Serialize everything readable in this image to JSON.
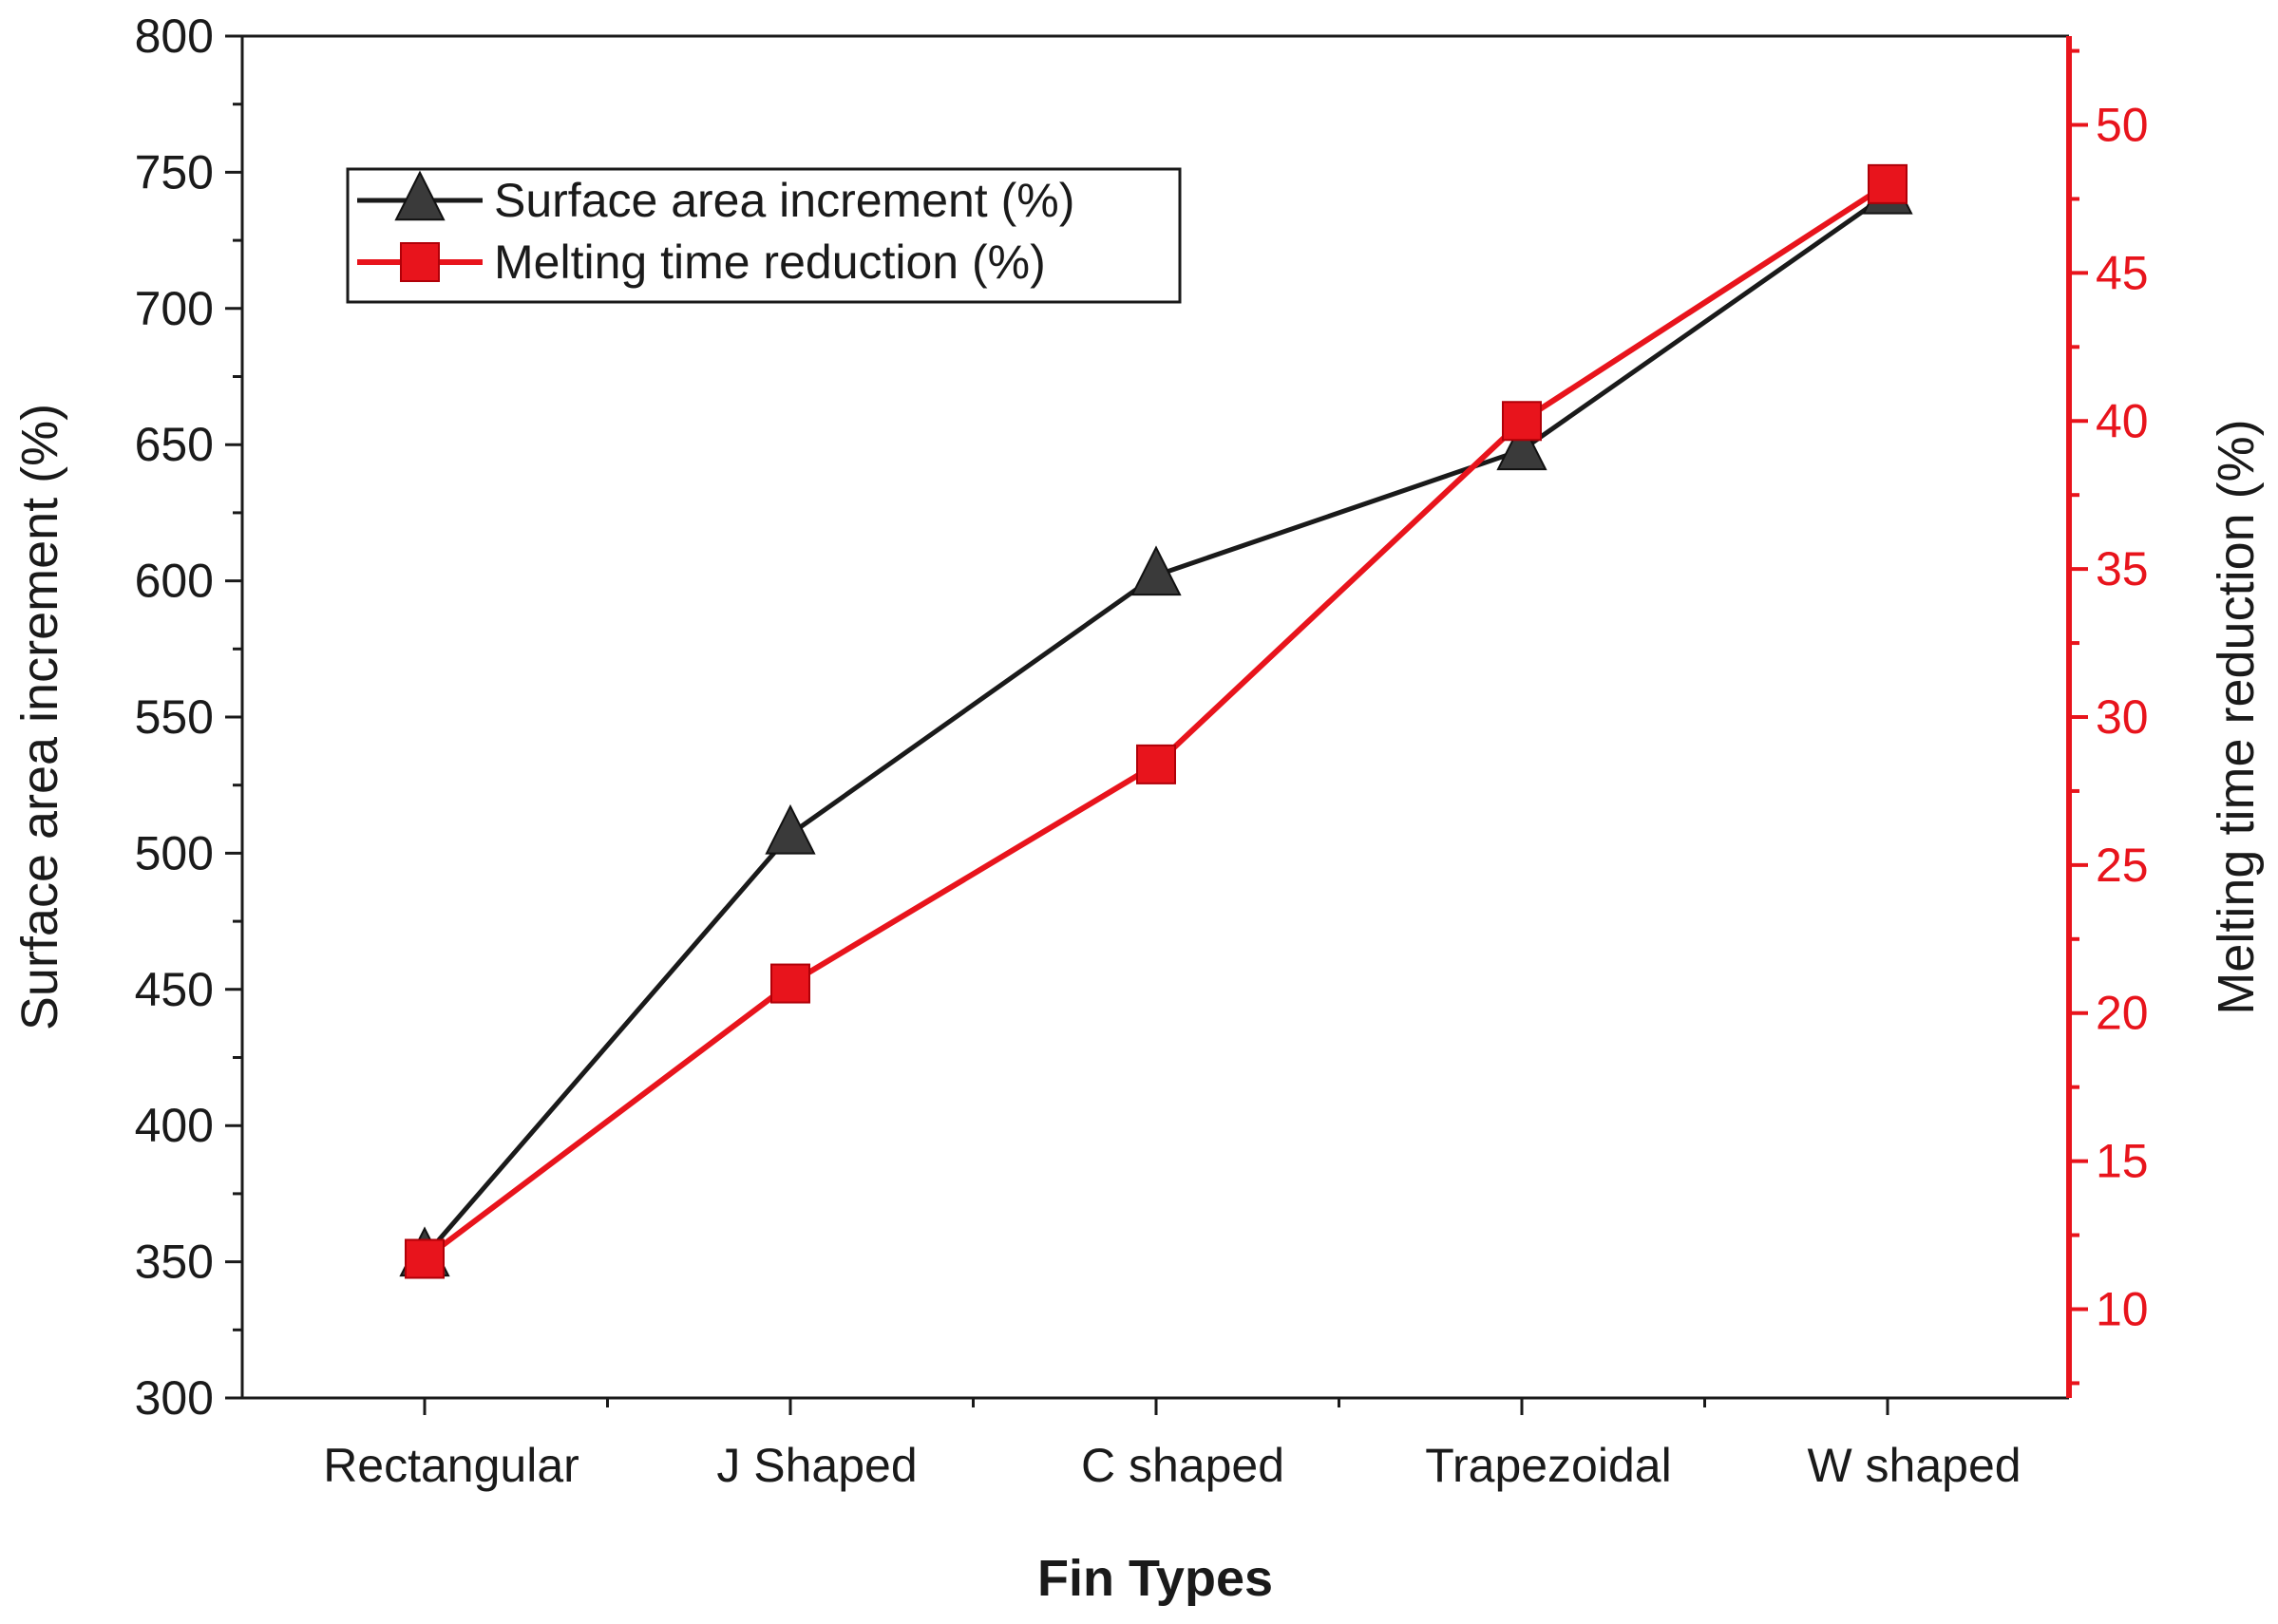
{
  "chart_data": {
    "type": "line",
    "categories": [
      "Rectangular",
      "J Shaped",
      "C shaped",
      "Trapezoidal",
      "W shaped"
    ],
    "xlabel": "Fin Types",
    "ylabel": "Surface area increment (%)",
    "y2label": "Melting time reduction (%)",
    "ylim": [
      300,
      800
    ],
    "y2lim": [
      7,
      53
    ],
    "yticks": [
      300,
      350,
      400,
      450,
      500,
      550,
      600,
      650,
      700,
      750,
      800
    ],
    "y2ticks": [
      10,
      15,
      20,
      25,
      30,
      35,
      40,
      45,
      50
    ],
    "legend_position": "top-left",
    "grid": false,
    "series": [
      {
        "name": "Surface area increment (%)",
        "axis": "left",
        "marker": "triangle",
        "color": "#1a1a1a",
        "marker_color": "#3a3a3a",
        "values": [
          352,
          507,
          602,
          648,
          742
        ]
      },
      {
        "name": "Melting time reduction (%)",
        "axis": "right",
        "marker": "square",
        "color": "#e8141c",
        "marker_color": "#e8141c",
        "values": [
          11.7,
          21.0,
          28.4,
          40.0,
          48.0
        ]
      }
    ]
  }
}
